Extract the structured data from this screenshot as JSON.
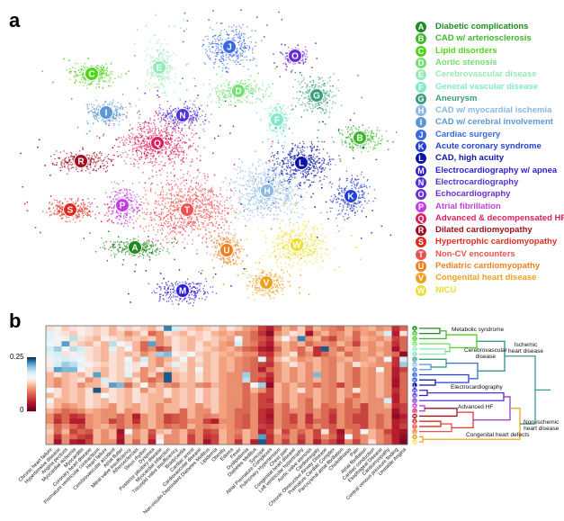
{
  "panels": {
    "a": "a",
    "b": "b"
  },
  "legend": [
    {
      "letter": "A",
      "label": "Diabetic complications",
      "color": "#1f8a1f"
    },
    {
      "letter": "B",
      "label": "CAD w/ arteriosclerosis",
      "color": "#3db82a"
    },
    {
      "letter": "C",
      "label": "Lipid disorders",
      "color": "#52d41c"
    },
    {
      "letter": "D",
      "label": "Aortic stenosis",
      "color": "#72e072"
    },
    {
      "letter": "E",
      "label": "Cerebrovascular disease",
      "color": "#95eab5"
    },
    {
      "letter": "F",
      "label": "General vascular disease",
      "color": "#82e8cc"
    },
    {
      "letter": "G",
      "label": "Aneurysm",
      "color": "#3a9e7c"
    },
    {
      "letter": "H",
      "label": "CAD w/ myocardial ischemia",
      "color": "#8bb8e2"
    },
    {
      "letter": "I",
      "label": "CAD w/ cerebral involvement",
      "color": "#5a98d6"
    },
    {
      "letter": "J",
      "label": "Cardiac surgery",
      "color": "#3a6ae0"
    },
    {
      "letter": "K",
      "label": "Acute coronary syndrome",
      "color": "#2440d6"
    },
    {
      "letter": "L",
      "label": "CAD, high acuity",
      "color": "#0b16a8"
    },
    {
      "letter": "M",
      "label": "Electrocardiography w/ apnea",
      "color": "#2e1ed0"
    },
    {
      "letter": "N",
      "label": "Electrocardiography",
      "color": "#5230d8"
    },
    {
      "letter": "O",
      "label": "Echocardiography",
      "color": "#6a2ed0"
    },
    {
      "letter": "P",
      "label": "Atrial fibrillation",
      "color": "#c23ee0"
    },
    {
      "letter": "Q",
      "label": "Advanced & decompensated HF",
      "color": "#dc1e5a"
    },
    {
      "letter": "R",
      "label": "Dilated cardiomyopathy",
      "color": "#9e1020"
    },
    {
      "letter": "S",
      "label": "Hypertrophic cardiomyopathy",
      "color": "#e02a1e"
    },
    {
      "letter": "T",
      "label": "Non-CV encounters",
      "color": "#f05050"
    },
    {
      "letter": "U",
      "label": "Pediatric cardiomyopathy",
      "color": "#ef8020"
    },
    {
      "letter": "V",
      "label": "Congenital heart disease",
      "color": "#f0a020"
    },
    {
      "letter": "W",
      "label": "NICU",
      "color": "#eedd2a"
    }
  ],
  "dendrogram": {
    "groups": {
      "metabolic": "Metabolic syndrome",
      "cerebro": "Cerebrovascular\ndisease",
      "ischemic": "Ischemic\nheart disease",
      "ecg": "Electrocardiography",
      "advhf": "Advanced HF",
      "nonischemic": "Non-ischemic\nheart disease",
      "congenital": "Congenital heart defects"
    }
  },
  "chart_data": {
    "type": "heatmap",
    "colorbar": {
      "range": [
        0,
        0.25
      ],
      "tick_labels": [
        "0.25",
        "0"
      ],
      "colormap": "RdBu"
    },
    "rows": [
      "A",
      "B",
      "C",
      "D",
      "E",
      "F",
      "G",
      "H",
      "I",
      "J",
      "K",
      "L",
      "M",
      "N",
      "O",
      "P",
      "Q",
      "R",
      "S",
      "T",
      "U",
      "V",
      "W"
    ],
    "columns": [
      "Chronic heart failure",
      "Hypertensive disease",
      "Angina pectoris",
      "Myocardial ischemia",
      "Myocarditis",
      "Coronary heart disease",
      "Premature ventricular contractions",
      "Heart failure",
      "Cerebrovascular accident",
      "Atrial flutter",
      "Mitral valve insufficiency",
      "Atherosclerosis",
      "Sinus rhythm",
      "Dyspnea",
      "Posterior pituitary disease",
      "Myocardial infarction",
      "Tricuspid valve insufficiency",
      "Bradycardia",
      "Cardiac arrest",
      "Cardiovascular disease",
      "Non-insulin-Dependent Diabetes Mellitus",
      "Lipidemia",
      "Obesity",
      "Edema",
      "Fever",
      "Dyslipidemia",
      "Diabetes Mellitus",
      "Syncope",
      "Atrial Premature Complexes",
      "Pulmonary Hypertension",
      "Chest pain",
      "Congenital heart disease",
      "Left ventricular hypertrophy",
      "Aortic valve stenosis",
      "Cardiomegaly",
      "Chronic Obstructive Airway Disease",
      "Premature Cardiac Complex",
      "Paroxysmal atrial fibrillation",
      "Cholelithiasis",
      "Pain",
      "Atrial fibrillation",
      "Cardiac conduction",
      "Esophageal Disease",
      "Cardiomyopathy",
      "Central venous pressure finding",
      "Unstable Angina"
    ],
    "values": [
      [
        0.14,
        0.15,
        0.13,
        0.14,
        0.15,
        0.14,
        0.13,
        0.14,
        0.12,
        0.14,
        0.13,
        0.14,
        0.13,
        0.12,
        0.14,
        0.23,
        0.18,
        0.14,
        0.13,
        0.12,
        0.13,
        0.14,
        0.12,
        0.14,
        0.13,
        0.11,
        0.1,
        0.06,
        0.04,
        0.08,
        0.12,
        0.1,
        0.13,
        0.08,
        0.12,
        0.1,
        0.09,
        0.08,
        0.12,
        0.1,
        0.11,
        0.12,
        0.1,
        0.11,
        0.05,
        0.08
      ],
      [
        0.17,
        0.15,
        0.14,
        0.13,
        0.15,
        0.14,
        0.13,
        0.14,
        0.12,
        0.13,
        0.1,
        0.12,
        0.14,
        0.08,
        0.1,
        0.14,
        0.13,
        0.12,
        0.14,
        0.13,
        0.14,
        0.12,
        0.11,
        0.12,
        0.1,
        0.1,
        0.08,
        0.05,
        0.02,
        0.1,
        0.12,
        0.14,
        0.13,
        0.03,
        0.1,
        0.12,
        0.09,
        0.1,
        0.12,
        0.08,
        0.11,
        0.1,
        0.12,
        0.18,
        0.04,
        0.14
      ],
      [
        0.17,
        0.16,
        0.15,
        0.19,
        0.14,
        0.13,
        0.12,
        0.15,
        0.14,
        0.13,
        0.12,
        0.13,
        0.12,
        0.13,
        0.1,
        0.12,
        0.14,
        0.13,
        0.12,
        0.13,
        0.14,
        0.13,
        0.12,
        0.11,
        0.16,
        0.1,
        0.08,
        0.07,
        0.05,
        0.12,
        0.16,
        0.12,
        0.23,
        0.1,
        0.12,
        0.08,
        0.06,
        0.1,
        0.11,
        0.08,
        0.12,
        0.11,
        0.1,
        0.12,
        0.06,
        0.08
      ],
      [
        0.16,
        0.15,
        0.22,
        0.14,
        0.13,
        0.12,
        0.14,
        0.12,
        0.19,
        0.16,
        0.14,
        0.12,
        0.08,
        0.22,
        0.1,
        0.12,
        0.14,
        0.13,
        0.12,
        0.14,
        0.12,
        0.13,
        0.11,
        0.1,
        0.18,
        0.1,
        0.09,
        0.06,
        0.04,
        0.1,
        0.12,
        0.1,
        0.12,
        0.08,
        0.1,
        0.1,
        0.09,
        0.12,
        0.1,
        0.06,
        0.11,
        0.1,
        0.12,
        0.1,
        0.05,
        0.08
      ],
      [
        0.18,
        0.2,
        0.16,
        0.19,
        0.18,
        0.14,
        0.13,
        0.12,
        0.17,
        0.13,
        0.16,
        0.12,
        0.08,
        0.1,
        0.06,
        0.08,
        0.14,
        0.13,
        0.12,
        0.14,
        0.13,
        0.12,
        0.11,
        0.12,
        0.1,
        0.08,
        0.07,
        0.04,
        0.03,
        0.08,
        0.12,
        0.1,
        0.08,
        0.12,
        0.05,
        0.24,
        0.1,
        0.08,
        0.11,
        0.1,
        0.12,
        0.1,
        0.11,
        0.1,
        0.03,
        0.08
      ],
      [
        0.17,
        0.18,
        0.14,
        0.15,
        0.17,
        0.14,
        0.13,
        0.12,
        0.14,
        0.13,
        0.12,
        0.13,
        0.1,
        0.12,
        0.2,
        0.21,
        0.15,
        0.14,
        0.16,
        0.13,
        0.12,
        0.13,
        0.12,
        0.11,
        0.12,
        0.1,
        0.1,
        0.06,
        0.05,
        0.1,
        0.12,
        0.14,
        0.08,
        0.1,
        0.05,
        0.08,
        0.1,
        0.12,
        0.08,
        0.1,
        0.11,
        0.1,
        0.12,
        0.1,
        0.08,
        0.02
      ],
      [
        0.15,
        0.17,
        0.18,
        0.17,
        0.16,
        0.14,
        0.13,
        0.12,
        0.14,
        0.13,
        0.16,
        0.12,
        0.18,
        0.12,
        0.1,
        0.12,
        0.13,
        0.16,
        0.12,
        0.14,
        0.12,
        0.13,
        0.11,
        0.12,
        0.1,
        0.09,
        0.08,
        0.17,
        0.06,
        0.12,
        0.14,
        0.12,
        0.1,
        0.11,
        0.12,
        0.1,
        0.09,
        0.11,
        0.12,
        0.1,
        0.11,
        0.12,
        0.1,
        0.16,
        0.05,
        0.18
      ],
      [
        0.15,
        0.18,
        0.2,
        0.19,
        0.17,
        0.15,
        0.14,
        0.13,
        0.14,
        0.13,
        0.17,
        0.14,
        0.15,
        0.12,
        0.1,
        0.13,
        0.17,
        0.14,
        0.12,
        0.13,
        0.12,
        0.13,
        0.11,
        0.12,
        0.1,
        0.09,
        0.08,
        0.06,
        0.05,
        0.1,
        0.12,
        0.14,
        0.12,
        0.1,
        0.12,
        0.1,
        0.09,
        0.12,
        0.1,
        0.14,
        0.12,
        0.11,
        0.1,
        0.1,
        0.05,
        0.2
      ],
      [
        0.14,
        0.22,
        0.21,
        0.21,
        0.16,
        0.14,
        0.13,
        0.12,
        0.14,
        0.13,
        0.15,
        0.14,
        0.1,
        0.12,
        0.14,
        0.12,
        0.13,
        0.14,
        0.12,
        0.16,
        0.12,
        0.13,
        0.11,
        0.12,
        0.1,
        0.09,
        0.08,
        0.04,
        0.08,
        0.1,
        0.12,
        0.1,
        0.12,
        0.1,
        0.12,
        0.1,
        0.09,
        0.12,
        0.1,
        0.08,
        0.11,
        0.1,
        0.16,
        0.1,
        0.04,
        0.06
      ],
      [
        0.12,
        0.14,
        0.12,
        0.13,
        0.12,
        0.14,
        0.22,
        0.12,
        0.14,
        0.13,
        0.17,
        0.12,
        0.1,
        0.13,
        0.09,
        0.24,
        0.12,
        0.13,
        0.12,
        0.14,
        0.12,
        0.13,
        0.11,
        0.1,
        0.1,
        0.2,
        0.08,
        0.08,
        0.05,
        0.1,
        0.12,
        0.1,
        0.12,
        0.1,
        0.21,
        0.1,
        0.09,
        0.12,
        0.1,
        0.08,
        0.11,
        0.1,
        0.12,
        0.1,
        0.04,
        0.08
      ],
      [
        0.12,
        0.1,
        0.12,
        0.13,
        0.14,
        0.1,
        0.12,
        0.18,
        0.14,
        0.13,
        0.12,
        0.14,
        0.1,
        0.08,
        0.1,
        0.24,
        0.12,
        0.13,
        0.12,
        0.14,
        0.12,
        0.13,
        0.11,
        0.1,
        0.1,
        0.19,
        0.08,
        0.06,
        0.04,
        0.1,
        0.12,
        0.1,
        0.12,
        0.1,
        0.12,
        0.1,
        0.09,
        0.12,
        0.1,
        0.08,
        0.11,
        0.1,
        0.12,
        0.1,
        0.03,
        0.08
      ],
      [
        0.12,
        0.1,
        0.12,
        0.13,
        0.1,
        0.12,
        0.12,
        0.14,
        0.22,
        0.21,
        0.08,
        0.12,
        0.16,
        0.1,
        0.12,
        0.1,
        0.09,
        0.12,
        0.12,
        0.1,
        0.09,
        0.12,
        0.11,
        0.1,
        0.1,
        0.08,
        0.16,
        0.2,
        0.02,
        0.12,
        0.1,
        0.12,
        0.1,
        0.1,
        0.08,
        0.1,
        0.09,
        0.06,
        0.1,
        0.08,
        0.11,
        0.1,
        0.12,
        0.1,
        0.03,
        0.08
      ],
      [
        0.16,
        0.14,
        0.12,
        0.13,
        0.12,
        0.14,
        0.24,
        0.12,
        0.14,
        0.13,
        0.12,
        0.14,
        0.1,
        0.13,
        0.12,
        0.14,
        0.12,
        0.13,
        0.12,
        0.14,
        0.12,
        0.13,
        0.11,
        0.1,
        0.1,
        0.08,
        0.12,
        0.1,
        0.06,
        0.12,
        0.1,
        0.12,
        0.14,
        0.1,
        0.12,
        0.1,
        0.09,
        0.12,
        0.1,
        0.14,
        0.11,
        0.1,
        0.12,
        0.1,
        0.05,
        0.08
      ],
      [
        0.12,
        0.14,
        0.12,
        0.13,
        0.12,
        0.14,
        0.13,
        0.16,
        0.14,
        0.13,
        0.12,
        0.14,
        0.13,
        0.12,
        0.12,
        0.14,
        0.12,
        0.13,
        0.12,
        0.14,
        0.12,
        0.13,
        0.11,
        0.1,
        0.1,
        0.08,
        0.1,
        0.06,
        0.06,
        0.12,
        0.1,
        0.12,
        0.1,
        0.1,
        0.12,
        0.1,
        0.09,
        0.12,
        0.1,
        0.08,
        0.11,
        0.1,
        0.12,
        0.1,
        0.04,
        0.08
      ],
      [
        0.16,
        0.12,
        0.12,
        0.13,
        0.12,
        0.14,
        0.13,
        0.12,
        0.14,
        0.13,
        0.12,
        0.14,
        0.13,
        0.12,
        0.12,
        0.1,
        0.12,
        0.13,
        0.12,
        0.14,
        0.12,
        0.13,
        0.11,
        0.1,
        0.1,
        0.08,
        0.1,
        0.06,
        0.05,
        0.12,
        0.1,
        0.12,
        0.1,
        0.08,
        0.12,
        0.1,
        0.09,
        0.12,
        0.08,
        0.1,
        0.11,
        0.1,
        0.1,
        0.18,
        0.04,
        0.08
      ],
      [
        0.14,
        0.12,
        0.1,
        0.11,
        0.12,
        0.14,
        0.13,
        0.12,
        0.1,
        0.13,
        0.12,
        0.11,
        0.13,
        0.12,
        0.1,
        0.12,
        0.12,
        0.13,
        0.12,
        0.1,
        0.12,
        0.13,
        0.11,
        0.1,
        0.1,
        0.08,
        0.1,
        0.06,
        0.06,
        0.1,
        0.08,
        0.12,
        0.1,
        0.08,
        0.12,
        0.08,
        0.09,
        0.1,
        0.08,
        0.1,
        0.06,
        0.1,
        0.1,
        0.12,
        0.05,
        0.06
      ],
      [
        0.12,
        0.1,
        0.08,
        0.09,
        0.1,
        0.12,
        0.11,
        0.1,
        0.1,
        0.13,
        0.1,
        0.11,
        0.13,
        0.12,
        0.1,
        0.12,
        0.12,
        0.08,
        0.12,
        0.1,
        0.1,
        0.13,
        0.11,
        0.1,
        0.08,
        0.08,
        0.1,
        0.05,
        0.04,
        0.1,
        0.08,
        0.1,
        0.1,
        0.08,
        0.1,
        0.08,
        0.06,
        0.1,
        0.08,
        0.08,
        0.06,
        0.1,
        0.1,
        0.1,
        0.03,
        0.06
      ],
      [
        0.1,
        0.06,
        0.08,
        0.05,
        0.06,
        0.1,
        0.11,
        0.1,
        0.1,
        0.08,
        0.1,
        0.04,
        0.1,
        0.12,
        0.1,
        0.06,
        0.07,
        0.08,
        0.12,
        0.1,
        0.09,
        0.1,
        0.11,
        0.1,
        0.08,
        0.07,
        0.1,
        0.05,
        0.03,
        0.1,
        0.08,
        0.06,
        0.1,
        0.05,
        0.1,
        0.08,
        0.05,
        0.1,
        0.08,
        0.06,
        0.06,
        0.1,
        0.08,
        0.1,
        0.02,
        0.04
      ],
      [
        0.1,
        0.05,
        0.08,
        0.04,
        0.04,
        0.1,
        0.11,
        0.1,
        0.06,
        0.08,
        0.1,
        0.05,
        0.1,
        0.12,
        0.1,
        0.06,
        0.07,
        0.08,
        0.1,
        0.1,
        0.06,
        0.04,
        0.1,
        0.1,
        0.08,
        0.07,
        0.1,
        0.05,
        0.04,
        0.1,
        0.08,
        0.06,
        0.1,
        0.05,
        0.08,
        0.08,
        0.05,
        0.1,
        0.08,
        0.06,
        0.06,
        0.1,
        0.08,
        0.1,
        0.04,
        0.05
      ],
      [
        0.12,
        0.08,
        0.1,
        0.08,
        0.06,
        0.1,
        0.11,
        0.12,
        0.1,
        0.08,
        0.1,
        0.08,
        0.1,
        0.12,
        0.1,
        0.08,
        0.09,
        0.08,
        0.12,
        0.1,
        0.09,
        0.1,
        0.11,
        0.1,
        0.08,
        0.07,
        0.1,
        0.06,
        0.05,
        0.1,
        0.08,
        0.08,
        0.1,
        0.07,
        0.1,
        0.08,
        0.07,
        0.1,
        0.08,
        0.08,
        0.06,
        0.1,
        0.08,
        0.1,
        0.04,
        0.06
      ],
      [
        0.13,
        0.08,
        0.12,
        0.06,
        0.08,
        0.07,
        0.12,
        0.1,
        0.12,
        0.03,
        0.16,
        0.1,
        0.12,
        0.07,
        0.12,
        0.13,
        0.1,
        0.12,
        0.08,
        0.1,
        0.06,
        0.07,
        0.12,
        0.1,
        0.09,
        0.12,
        0.1,
        0.04,
        0.06,
        0.12,
        0.06,
        0.1,
        0.08,
        0.1,
        0.06,
        0.14,
        0.07,
        0.03,
        0.1,
        0.08,
        0.16,
        0.12,
        0.1,
        0.06,
        0.04,
        0.03
      ],
      [
        0.12,
        0.05,
        0.1,
        0.08,
        0.06,
        0.05,
        0.12,
        0.1,
        0.12,
        0.04,
        0.12,
        0.1,
        0.12,
        0.06,
        0.14,
        0.1,
        0.1,
        0.12,
        0.06,
        0.1,
        0.05,
        0.06,
        0.12,
        0.1,
        0.08,
        0.12,
        0.1,
        0.22,
        0.05,
        0.1,
        0.08,
        0.1,
        0.06,
        0.1,
        0.06,
        0.1,
        0.08,
        0.04,
        0.16,
        0.08,
        0.1,
        0.12,
        0.1,
        0.08,
        0.04,
        0.02
      ],
      [
        0.12,
        0.03,
        0.1,
        0.04,
        0.03,
        0.06,
        0.12,
        0.1,
        0.1,
        0.03,
        0.12,
        0.08,
        0.12,
        0.04,
        0.16,
        0.1,
        0.1,
        0.12,
        0.06,
        0.1,
        0.03,
        0.06,
        0.12,
        0.1,
        0.05,
        0.12,
        0.04,
        0.24,
        0.05,
        0.1,
        0.06,
        0.1,
        0.05,
        0.1,
        0.04,
        0.08,
        0.06,
        0.03,
        0.1,
        0.06,
        0.1,
        0.14,
        0.1,
        0.08,
        0.04,
        0.01
      ]
    ]
  }
}
